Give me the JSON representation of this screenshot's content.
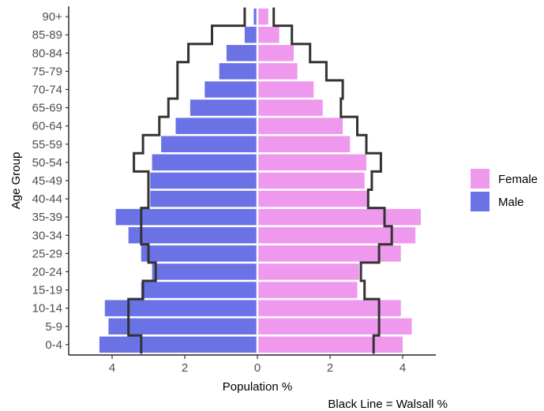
{
  "chart_data": {
    "type": "bar",
    "orientation": "horizontal",
    "xlabel": "Population %",
    "ylabel": "Age Group",
    "caption": "Black Line = Walsall %",
    "xlim": [
      -5,
      5
    ],
    "x_ticks": [
      -4,
      -2,
      0,
      2,
      4
    ],
    "x_tick_labels": [
      "4",
      "2",
      "0",
      "2",
      "4"
    ],
    "categories": [
      "0-4",
      "5-9",
      "10-14",
      "15-19",
      "20-24",
      "25-29",
      "30-34",
      "35-39",
      "40-44",
      "45-49",
      "50-54",
      "55-59",
      "60-64",
      "65-69",
      "70-74",
      "75-79",
      "80-84",
      "85-89",
      "90+"
    ],
    "series": [
      {
        "name": "Male",
        "color": "#6a72e6",
        "values": [
          4.35,
          4.1,
          4.2,
          3.2,
          2.9,
          3.2,
          3.55,
          3.9,
          2.95,
          2.95,
          2.9,
          2.65,
          2.25,
          1.85,
          1.45,
          1.05,
          0.85,
          0.35,
          0.1
        ]
      },
      {
        "name": "Female",
        "color": "#ee99ee",
        "values": [
          4.0,
          4.25,
          3.95,
          2.75,
          2.8,
          3.95,
          4.35,
          4.5,
          3.05,
          2.95,
          3.0,
          2.55,
          2.35,
          1.8,
          1.55,
          1.1,
          1.0,
          0.6,
          0.3
        ]
      }
    ],
    "reference_line": {
      "label": "Walsall %",
      "color": "#333333",
      "male": [
        3.2,
        3.55,
        3.55,
        3.15,
        2.8,
        3.0,
        3.2,
        3.2,
        3.0,
        3.0,
        3.4,
        3.15,
        2.7,
        2.45,
        2.2,
        2.2,
        1.9,
        1.25,
        0.35
      ],
      "female": [
        3.2,
        3.35,
        3.35,
        2.95,
        2.85,
        3.35,
        3.7,
        3.5,
        3.05,
        3.15,
        3.4,
        3.0,
        2.75,
        2.3,
        2.35,
        1.9,
        1.45,
        0.95,
        0.45
      ]
    },
    "legend_position": "right",
    "grid": false
  }
}
